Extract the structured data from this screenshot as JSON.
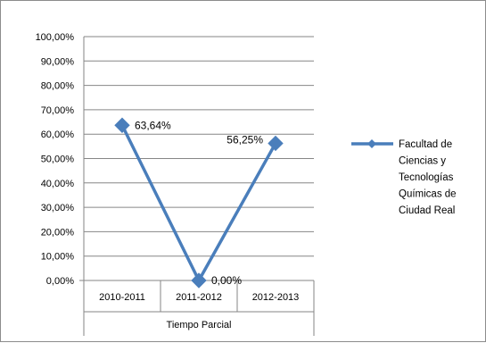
{
  "chart_data": {
    "type": "line",
    "title": "",
    "ylabel": "",
    "xlabel": "Tiempo Parcial",
    "categories": [
      "2010-2011",
      "2011-2012",
      "2012-2013"
    ],
    "ylim": [
      0,
      100
    ],
    "y_tick_labels": [
      "0,00%",
      "10,00%",
      "20,00%",
      "30,00%",
      "40,00%",
      "50,00%",
      "60,00%",
      "70,00%",
      "80,00%",
      "90,00%",
      "100,00%"
    ],
    "series": [
      {
        "name": "Facultad de Ciencias y Tecnologías Químicas de Ciudad Real",
        "legend_lines": [
          "Facultad de",
          "Ciencias y",
          "Tecnologías",
          "Químicas de",
          "Ciudad Real"
        ],
        "values": [
          63.64,
          0.0,
          56.25
        ],
        "data_labels": [
          "63,64%",
          "0,00%",
          "56,25%"
        ],
        "color": "#4a7ebb"
      }
    ],
    "grid": true,
    "legend_position": "right"
  }
}
